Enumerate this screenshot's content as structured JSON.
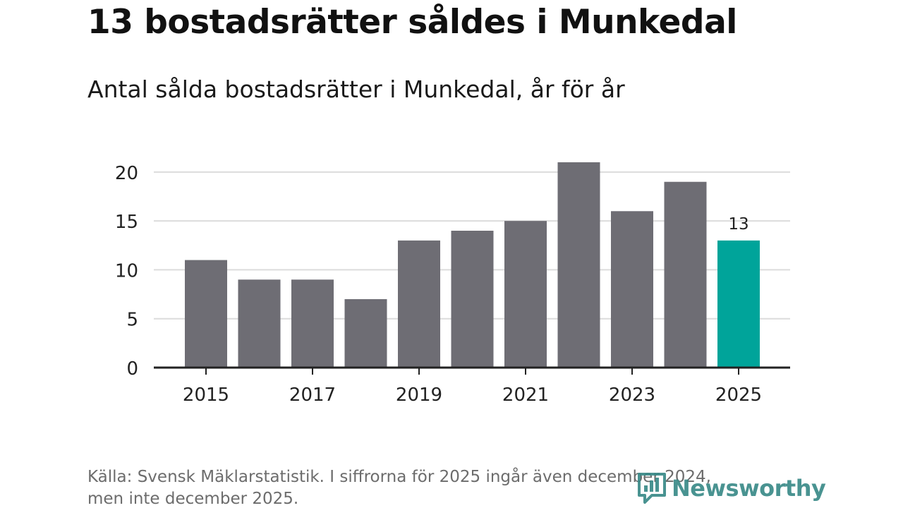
{
  "header": {
    "title": "13 bostadsrätter såldes i Munkedal",
    "subtitle": "Antal sålda bostadsrätter i Munkedal, år för år"
  },
  "footer": {
    "source_line1": "Källa: Svensk Mäklarstatistik. I siffrorna för 2025 ingår även december 2024,",
    "source_line2": "men inte december 2025.",
    "brand_name": "Newsworthy"
  },
  "colors": {
    "bar": "#6e6d74",
    "highlight": "#00a49a",
    "grid": "#dcdcdc",
    "axis": "#222222",
    "brand": "#3a8a88"
  },
  "chart_data": {
    "type": "bar",
    "title": "13 bostadsrätter såldes i Munkedal",
    "subtitle": "Antal sålda bostadsrätter i Munkedal, år för år",
    "xlabel": "",
    "ylabel": "",
    "categories": [
      "2015",
      "2016",
      "2017",
      "2018",
      "2019",
      "2020",
      "2021",
      "2022",
      "2023",
      "2024",
      "2025"
    ],
    "values": [
      11,
      9,
      9,
      7,
      13,
      14,
      15,
      21,
      16,
      19,
      13
    ],
    "ylim": [
      0,
      21
    ],
    "yticks": [
      0,
      5,
      10,
      15,
      20
    ],
    "xticks": [
      "2015",
      "2017",
      "2019",
      "2021",
      "2023",
      "2025"
    ],
    "highlight_category": "2025",
    "data_labels": [
      {
        "category": "2025",
        "text": "13"
      }
    ],
    "grid": true,
    "legend": "none"
  }
}
